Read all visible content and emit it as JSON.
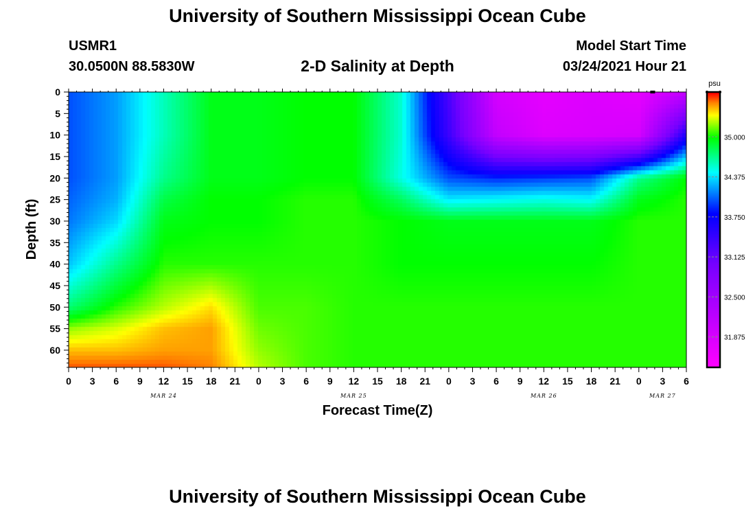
{
  "header": {
    "title": "University of Southern Mississippi Ocean Cube",
    "station_id": "USMR1",
    "station_coords": "30.0500N 88.5830W",
    "chart_title": "2-D Salinity at Depth",
    "model_start_label": "Model Start Time",
    "model_start_value": "03/24/2021 Hour 21"
  },
  "footer": {
    "title": "University of Southern Mississippi Ocean Cube"
  },
  "colors": {
    "colormap": [
      "#ff00ff",
      "#7700ff",
      "#0000ff",
      "#00ffff",
      "#00ff00",
      "#ffff00",
      "#ff8000",
      "#ff0000"
    ]
  },
  "chart_data": {
    "type": "heatmap",
    "title": "2-D Salinity at Depth",
    "xlabel": "Forecast Time(Z)",
    "ylabel": "Depth (ft)",
    "x_ticks": [
      "0",
      "3",
      "6",
      "9",
      "12",
      "15",
      "18",
      "21",
      "0",
      "3",
      "6",
      "9",
      "12",
      "15",
      "18",
      "21",
      "0",
      "3",
      "6",
      "9",
      "12",
      "15",
      "18",
      "21",
      "0",
      "3",
      "6"
    ],
    "date_labels": [
      {
        "label": "MAR 24",
        "hour": 12
      },
      {
        "label": "MAR 25",
        "hour": 36
      },
      {
        "label": "MAR 26",
        "hour": 60
      },
      {
        "label": "MAR 27",
        "hour": 75
      }
    ],
    "xlim_hours": [
      0,
      78
    ],
    "y_ticks": [
      0,
      5,
      10,
      15,
      20,
      25,
      30,
      35,
      40,
      45,
      50,
      55,
      60
    ],
    "ylim": [
      0,
      64
    ],
    "colorbar": {
      "unit": "psu",
      "tick_labels": [
        "35.000",
        "34.375",
        "33.750",
        "33.125",
        "32.500",
        "31.875"
      ],
      "tick_values": [
        35.0,
        34.375,
        33.75,
        33.125,
        32.5,
        31.875
      ],
      "range": [
        31.4,
        35.7
      ]
    },
    "hours": [
      0,
      6,
      12,
      18,
      24,
      30,
      36,
      42,
      48,
      54,
      60,
      66,
      72,
      78
    ],
    "depths": [
      0,
      10,
      20,
      25,
      30,
      40,
      50,
      55,
      60,
      64
    ],
    "values": [
      [
        34.0,
        34.2,
        34.6,
        34.95,
        34.95,
        35.0,
        35.0,
        34.55,
        33.3,
        31.9,
        31.7,
        31.8,
        31.7,
        32.1
      ],
      [
        34.0,
        34.2,
        34.6,
        34.95,
        34.95,
        35.0,
        35.0,
        34.55,
        33.4,
        32.1,
        31.8,
        31.85,
        31.9,
        33.6
      ],
      [
        34.0,
        34.2,
        34.7,
        34.95,
        34.95,
        35.0,
        35.0,
        34.5,
        34.0,
        33.9,
        33.95,
        34.0,
        34.7,
        35.0
      ],
      [
        34.05,
        34.25,
        34.85,
        35.0,
        35.0,
        35.05,
        35.05,
        34.8,
        34.4,
        34.45,
        34.5,
        34.45,
        34.95,
        35.05
      ],
      [
        34.1,
        34.35,
        34.95,
        35.0,
        35.0,
        35.05,
        35.05,
        35.0,
        34.95,
        34.95,
        34.95,
        34.95,
        35.05,
        35.05
      ],
      [
        34.3,
        34.7,
        35.05,
        35.05,
        35.05,
        35.05,
        35.05,
        35.0,
        35.0,
        35.0,
        35.0,
        35.0,
        35.05,
        35.05
      ],
      [
        34.75,
        35.05,
        35.25,
        35.4,
        35.1,
        35.1,
        35.05,
        35.05,
        35.05,
        35.05,
        35.05,
        35.05,
        35.05,
        35.05
      ],
      [
        35.2,
        35.3,
        35.45,
        35.5,
        35.15,
        35.1,
        35.05,
        35.05,
        35.05,
        35.05,
        35.05,
        35.05,
        35.05,
        35.05
      ],
      [
        35.45,
        35.45,
        35.5,
        35.5,
        35.2,
        35.1,
        35.05,
        35.05,
        35.05,
        35.05,
        35.05,
        35.05,
        35.05,
        35.05
      ],
      [
        35.6,
        35.6,
        35.6,
        35.55,
        35.25,
        35.1,
        35.05,
        35.05,
        35.05,
        35.05,
        35.05,
        35.05,
        35.05,
        35.05
      ]
    ]
  }
}
